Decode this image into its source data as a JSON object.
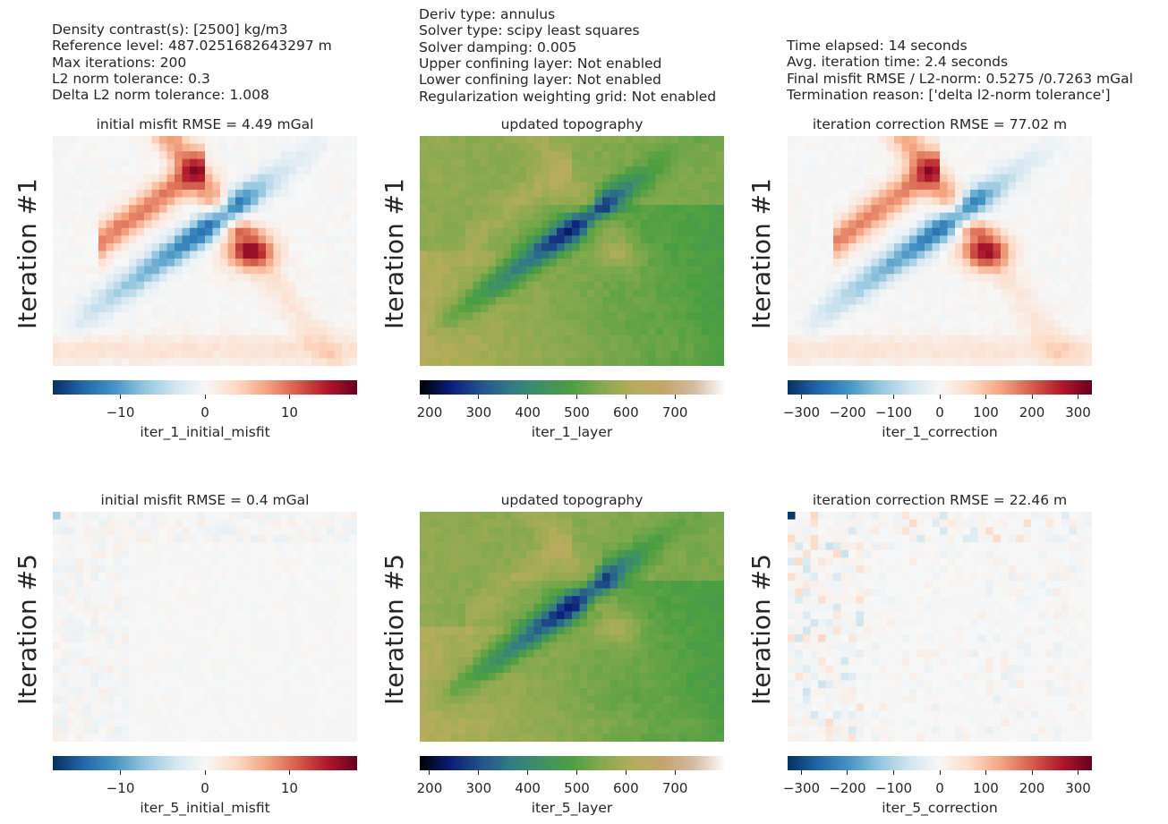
{
  "info": {
    "left": [
      "Density contrast(s): [2500] kg/m3",
      "Reference level: 487.0251682643297 m",
      "Max iterations: 200",
      "L2 norm tolerance: 0.3",
      "Delta L2 norm tolerance: 1.008"
    ],
    "middle": [
      "Deriv type: annulus",
      "Solver type: scipy least squares",
      "Solver damping: 0.005",
      "Upper confining layer: Not enabled",
      "Lower confining layer: Not enabled",
      "Regularization weighting grid: Not enabled"
    ],
    "right": [
      "Time elapsed: 14 seconds",
      "Avg. iteration time: 2.4 seconds",
      "Final misfit RMSE / L2-norm: 0.5275 /0.7263 mGal",
      "Termination reason: ['delta l2-norm tolerance']"
    ]
  },
  "rows": [
    {
      "label": "Iteration #1",
      "panels": [
        {
          "title": "initial misfit RMSE = 4.49 mGal",
          "cbar_label": "iter_1_initial_misfit",
          "colormap": "RdBu_r",
          "cbar_range": [
            -18,
            18
          ],
          "ticks": [
            -10,
            0,
            10
          ],
          "tick_labels": [
            "−10",
            "0",
            "10"
          ]
        },
        {
          "title": "updated topography",
          "cbar_label": "iter_1_layer",
          "colormap": "gist_earth",
          "cbar_range": [
            180,
            800
          ],
          "ticks": [
            200,
            300,
            400,
            500,
            600,
            700
          ],
          "tick_labels": [
            "200",
            "300",
            "400",
            "500",
            "600",
            "700"
          ]
        },
        {
          "title": "iteration correction RMSE = 77.02 m",
          "cbar_label": "iter_1_correction",
          "colormap": "RdBu_r",
          "cbar_range": [
            -330,
            330
          ],
          "ticks": [
            -300,
            -200,
            -100,
            0,
            100,
            200,
            300
          ],
          "tick_labels": [
            "−300",
            "−200",
            "−100",
            "0",
            "100",
            "200",
            "300"
          ]
        }
      ]
    },
    {
      "label": "Iteration #5",
      "panels": [
        {
          "title": "initial misfit RMSE = 0.4 mGal",
          "cbar_label": "iter_5_initial_misfit",
          "colormap": "RdBu_r",
          "cbar_range": [
            -18,
            18
          ],
          "ticks": [
            -10,
            0,
            10
          ],
          "tick_labels": [
            "−10",
            "0",
            "10"
          ]
        },
        {
          "title": "updated topography",
          "cbar_label": "iter_5_layer",
          "colormap": "gist_earth",
          "cbar_range": [
            180,
            800
          ],
          "ticks": [
            200,
            300,
            400,
            500,
            600,
            700
          ],
          "tick_labels": [
            "200",
            "300",
            "400",
            "500",
            "600",
            "700"
          ]
        },
        {
          "title": "iteration correction RMSE = 22.46 m",
          "cbar_label": "iter_5_correction",
          "colormap": "RdBu_r",
          "cbar_range": [
            -330,
            330
          ],
          "ticks": [
            -300,
            -200,
            -100,
            0,
            100,
            200,
            300
          ],
          "tick_labels": [
            "−300",
            "−200",
            "−100",
            "0",
            "100",
            "200",
            "300"
          ]
        }
      ]
    }
  ],
  "chart_data": {
    "type": "heatmap",
    "layout": "2x3 grid of map panels with horizontal colorbars",
    "grid_lines": false,
    "colormaps": {
      "RdBu_r": [
        "#053061",
        "#2166ac",
        "#4393c3",
        "#92c5de",
        "#d1e5f0",
        "#f7f7f7",
        "#fddbc7",
        "#f4a582",
        "#d6604d",
        "#b2182b",
        "#67001f"
      ],
      "gist_earth": [
        "#000000",
        "#0a1d78",
        "#21528a",
        "#337b86",
        "#3e9163",
        "#4c9f41",
        "#86a94e",
        "#b4ad5a",
        "#c3a56b",
        "#d4b9a2",
        "#fdfafa"
      ]
    }
  }
}
